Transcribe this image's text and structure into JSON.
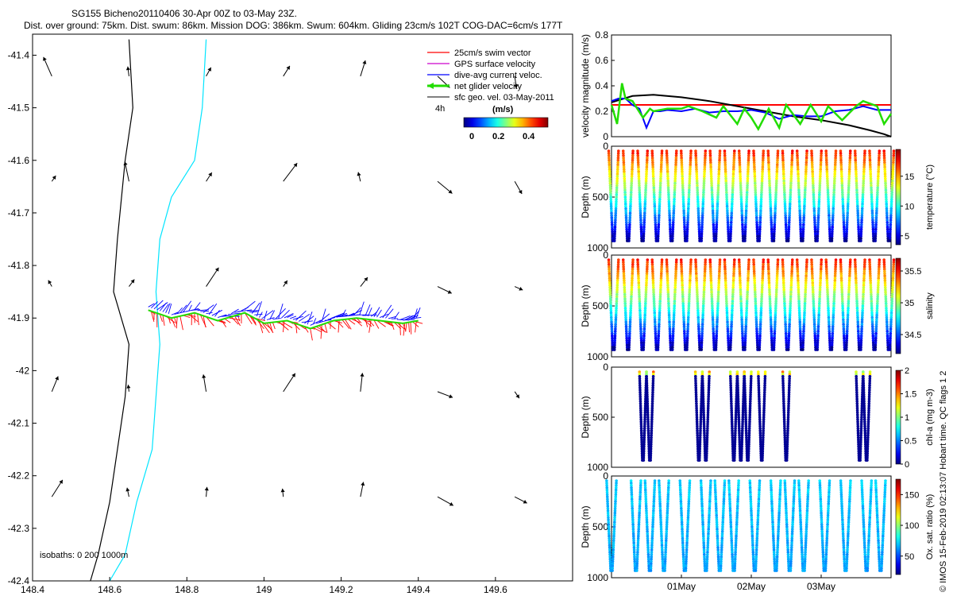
{
  "header": {
    "title_line1": "SG155 Bicheno20110406 30-Apr 00Z to 03-May 23Z.",
    "title_line2": "Dist. over ground: 75km. Dist. swum: 86km. Mission DOG: 386km. Swum: 604km. Gliding 23cm/s 102T COG-DAC=6cm/s 177T"
  },
  "credit": "© IMOS 15-Feb-2019 02:13:07 Hobart time. QC flags 1  2",
  "colors": {
    "swim": "#ff0000",
    "gps": "#cc00cc",
    "dac": "#0000ff",
    "net": "#22dd00",
    "sfc": "#000000",
    "isobath_shallow": "#000000",
    "isobath_deep": "#00e5ff"
  },
  "chart_data": [
    {
      "type": "map",
      "name": "track-map",
      "xlim": [
        148.4,
        149.8
      ],
      "ylim": [
        -42.4,
        -41.36
      ],
      "xticks": [
        148.4,
        148.6,
        148.8,
        149,
        149.2,
        149.4,
        149.6
      ],
      "xtick_labels": [
        "148.4",
        "148.6",
        "148.8",
        "149",
        "149.2",
        "149.4",
        "149.6"
      ],
      "yticks": [
        -41.4,
        -41.5,
        -41.6,
        -41.7,
        -41.8,
        -41.9,
        -42,
        -42.1,
        -42.2,
        -42.3,
        -42.4
      ],
      "ytick_labels": [
        "-41.4",
        "-41.5",
        "-41.6",
        "-41.7",
        "-41.8",
        "-41.9",
        "-42",
        "-42.1",
        "-42.2",
        "-42.3",
        "-42.4"
      ],
      "legend": {
        "placement": "top-right",
        "items": [
          {
            "label": "25cm/s swim vector",
            "color": "#ff0000"
          },
          {
            "label": "GPS surface velocity",
            "color": "#cc00cc"
          },
          {
            "label": "dive-avg current veloc.",
            "color": "#0000ff"
          },
          {
            "label": "net glider velocity",
            "color": "#22dd00"
          },
          {
            "label": "sfc geo. vel. 03-May-2011",
            "color": "#000000"
          }
        ],
        "extra": "4h"
      },
      "colorbar": {
        "label": "(m/s)",
        "ticks": [
          "0",
          "0.2",
          "0.4"
        ]
      },
      "isobath_label": "isobaths: 0   200  1000m",
      "isobath_200": [
        [
          148.65,
          -41.37
        ],
        [
          148.66,
          -41.5
        ],
        [
          148.64,
          -41.6
        ],
        [
          148.62,
          -41.75
        ],
        [
          148.61,
          -41.85
        ],
        [
          148.65,
          -41.95
        ],
        [
          148.64,
          -42.05
        ],
        [
          148.62,
          -42.15
        ],
        [
          148.6,
          -42.25
        ],
        [
          148.57,
          -42.35
        ],
        [
          148.55,
          -42.4
        ]
      ],
      "isobath_1000": [
        [
          148.85,
          -41.37
        ],
        [
          148.84,
          -41.5
        ],
        [
          148.82,
          -41.6
        ],
        [
          148.76,
          -41.67
        ],
        [
          148.73,
          -41.75
        ],
        [
          148.72,
          -41.85
        ],
        [
          148.73,
          -41.95
        ],
        [
          148.72,
          -42.05
        ],
        [
          148.71,
          -42.15
        ],
        [
          148.67,
          -42.25
        ],
        [
          148.64,
          -42.35
        ],
        [
          148.6,
          -42.4
        ]
      ],
      "track": [
        [
          148.7,
          -41.885
        ],
        [
          148.76,
          -41.9
        ],
        [
          148.82,
          -41.89
        ],
        [
          148.88,
          -41.905
        ],
        [
          148.95,
          -41.89
        ],
        [
          149.0,
          -41.91
        ],
        [
          149.06,
          -41.905
        ],
        [
          149.12,
          -41.92
        ],
        [
          149.18,
          -41.905
        ],
        [
          149.24,
          -41.9
        ],
        [
          149.3,
          -41.905
        ],
        [
          149.36,
          -41.91
        ],
        [
          149.4,
          -41.905
        ]
      ]
    },
    {
      "type": "line",
      "name": "velocity-magnitude",
      "ylabel": "velocity magnitude (m/s)",
      "xlim": [
        0,
        4
      ],
      "ylim": [
        0,
        0.8
      ],
      "yticks": [
        0,
        0.2,
        0.4,
        0.6,
        0.8
      ],
      "ytick_labels": [
        "0",
        "0.2",
        "0.4",
        "0.6",
        "0.8"
      ],
      "series": [
        {
          "color": "#ff0000",
          "x": [
            0,
            4
          ],
          "y": [
            0.25,
            0.25
          ]
        },
        {
          "color": "#000000",
          "x": [
            0,
            0.3,
            0.6,
            1.0,
            1.4,
            1.8,
            2.2,
            2.6,
            3.0,
            3.4,
            3.7,
            3.9,
            4.0
          ],
          "y": [
            0.27,
            0.32,
            0.33,
            0.31,
            0.28,
            0.24,
            0.2,
            0.16,
            0.13,
            0.09,
            0.05,
            0.02,
            0.0
          ]
        },
        {
          "color": "#0000ff",
          "x": [
            0,
            0.1,
            0.2,
            0.3,
            0.4,
            0.5,
            0.6,
            0.7,
            0.8,
            1.0,
            1.2,
            1.4,
            1.6,
            1.8,
            2.0,
            2.2,
            2.4,
            2.6,
            2.8,
            3.0,
            3.2,
            3.4,
            3.6,
            3.8,
            4.0
          ],
          "y": [
            0.28,
            0.3,
            0.3,
            0.25,
            0.22,
            0.07,
            0.2,
            0.2,
            0.21,
            0.2,
            0.22,
            0.19,
            0.2,
            0.2,
            0.21,
            0.19,
            0.14,
            0.17,
            0.16,
            0.16,
            0.2,
            0.21,
            0.24,
            0.21,
            0.21
          ]
        },
        {
          "color": "#22dd00",
          "x": [
            0,
            0.08,
            0.15,
            0.2,
            0.3,
            0.45,
            0.55,
            0.6,
            0.8,
            1.0,
            1.1,
            1.3,
            1.5,
            1.6,
            1.8,
            1.9,
            2.0,
            2.1,
            2.25,
            2.4,
            2.5,
            2.7,
            2.85,
            3.0,
            3.1,
            3.3,
            3.5,
            3.6,
            3.8,
            3.9,
            4.0
          ],
          "y": [
            0.25,
            0.1,
            0.42,
            0.3,
            0.28,
            0.15,
            0.22,
            0.2,
            0.22,
            0.22,
            0.24,
            0.2,
            0.15,
            0.24,
            0.1,
            0.22,
            0.15,
            0.06,
            0.22,
            0.07,
            0.25,
            0.1,
            0.25,
            0.12,
            0.24,
            0.13,
            0.24,
            0.28,
            0.24,
            0.1,
            0.18
          ]
        }
      ]
    },
    {
      "type": "scatter",
      "name": "temperature-section",
      "ylabel": "Depth (m)",
      "cbar_label": "temperature (°C)",
      "cbar_range": [
        3.5,
        19.5
      ],
      "cbar_ticks": [
        "15",
        "10",
        "5"
      ],
      "ylim": [
        1000,
        0
      ],
      "yticks": [
        0,
        500,
        1000
      ],
      "ytick_labels": [
        "0",
        "500",
        "1000"
      ],
      "dives": 20,
      "dive_depth": 1000
    },
    {
      "type": "scatter",
      "name": "salinity-section",
      "ylabel": "Depth (m)",
      "cbar_label": "salinity",
      "cbar_range": [
        34.2,
        35.7
      ],
      "cbar_ticks": [
        "35.5",
        "35",
        "34.5"
      ],
      "ylim": [
        1000,
        0
      ],
      "yticks": [
        0,
        500,
        1000
      ],
      "ytick_labels": [
        "0",
        "500",
        "1000"
      ],
      "dives": 20,
      "dive_depth": 1000
    },
    {
      "type": "scatter",
      "name": "chla-section",
      "ylabel": "Depth (m)",
      "cbar_label": "chl-a (mg m-3)",
      "cbar_range": [
        0,
        2
      ],
      "cbar_ticks": [
        "2",
        "1.5",
        "1",
        "0.5",
        "0"
      ],
      "ylim": [
        1000,
        0
      ],
      "yticks": [
        0,
        500,
        1000
      ],
      "ytick_labels": [
        "0",
        "500",
        "1000"
      ],
      "dive_positions": [
        0.45,
        0.55,
        1.25,
        1.35,
        1.75,
        1.85,
        1.95,
        2.15,
        2.5,
        3.55,
        3.65
      ],
      "dive_depth": 1000
    },
    {
      "type": "scatter",
      "name": "oxygen-section",
      "ylabel": "Depth (m)",
      "cbar_label": "Ox. sat. ratio (%)",
      "cbar_range": [
        20,
        175
      ],
      "cbar_ticks": [
        "150",
        "100",
        "50"
      ],
      "ylim": [
        1000,
        0
      ],
      "yticks": [
        0,
        500,
        1000
      ],
      "ytick_labels": [
        "0",
        "500",
        "1000"
      ],
      "dive_positions": [
        0.0,
        0.35,
        0.55,
        0.75,
        1.05,
        1.35,
        1.55,
        1.75,
        2.05,
        2.35,
        2.55,
        2.75,
        3.05,
        3.35,
        3.65,
        3.85
      ],
      "dive_depth": 1000,
      "xticks": [
        1,
        2,
        3
      ],
      "xtick_labels": [
        "01May",
        "02May",
        "03May"
      ]
    }
  ]
}
